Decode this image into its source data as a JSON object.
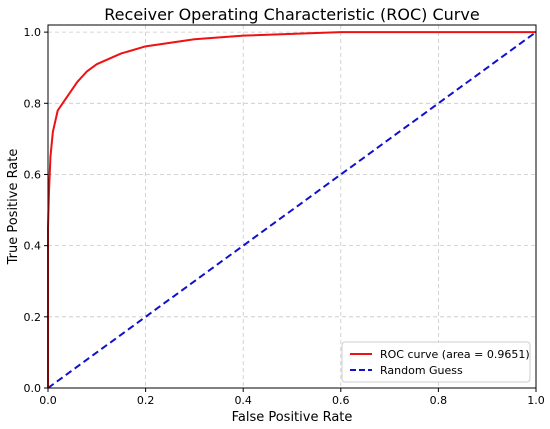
{
  "chart_data": {
    "type": "line",
    "title": "Receiver Operating Characteristic (ROC) Curve",
    "xlabel": "False Positive Rate",
    "ylabel": "True Positive Rate",
    "xlim": [
      0.0,
      1.0
    ],
    "ylim": [
      0.0,
      1.02
    ],
    "xticks": [
      0.0,
      0.2,
      0.4,
      0.6,
      0.8,
      1.0
    ],
    "yticks": [
      0.0,
      0.2,
      0.4,
      0.6,
      0.8,
      1.0
    ],
    "xtick_labels": [
      "0.0",
      "0.2",
      "0.4",
      "0.6",
      "0.8",
      "1.0"
    ],
    "ytick_labels": [
      "0.0",
      "0.2",
      "0.4",
      "0.6",
      "0.8",
      "1.0"
    ],
    "grid": true,
    "legend_position": "lower-right",
    "series": [
      {
        "name": "ROC curve (area = 0.9651)",
        "color": "#ee1111",
        "style": "solid",
        "x": [
          0.0,
          0.0,
          0.002,
          0.005,
          0.01,
          0.02,
          0.04,
          0.06,
          0.08,
          0.1,
          0.15,
          0.2,
          0.3,
          0.4,
          0.5,
          0.6,
          0.8,
          1.0
        ],
        "y": [
          0.0,
          0.45,
          0.55,
          0.65,
          0.72,
          0.78,
          0.82,
          0.86,
          0.89,
          0.91,
          0.94,
          0.96,
          0.98,
          0.99,
          0.995,
          1.0,
          1.0,
          1.0
        ]
      },
      {
        "name": "Random Guess",
        "color": "#1111cc",
        "style": "dashed",
        "x": [
          0.0,
          1.0
        ],
        "y": [
          0.0,
          1.0
        ]
      }
    ]
  }
}
